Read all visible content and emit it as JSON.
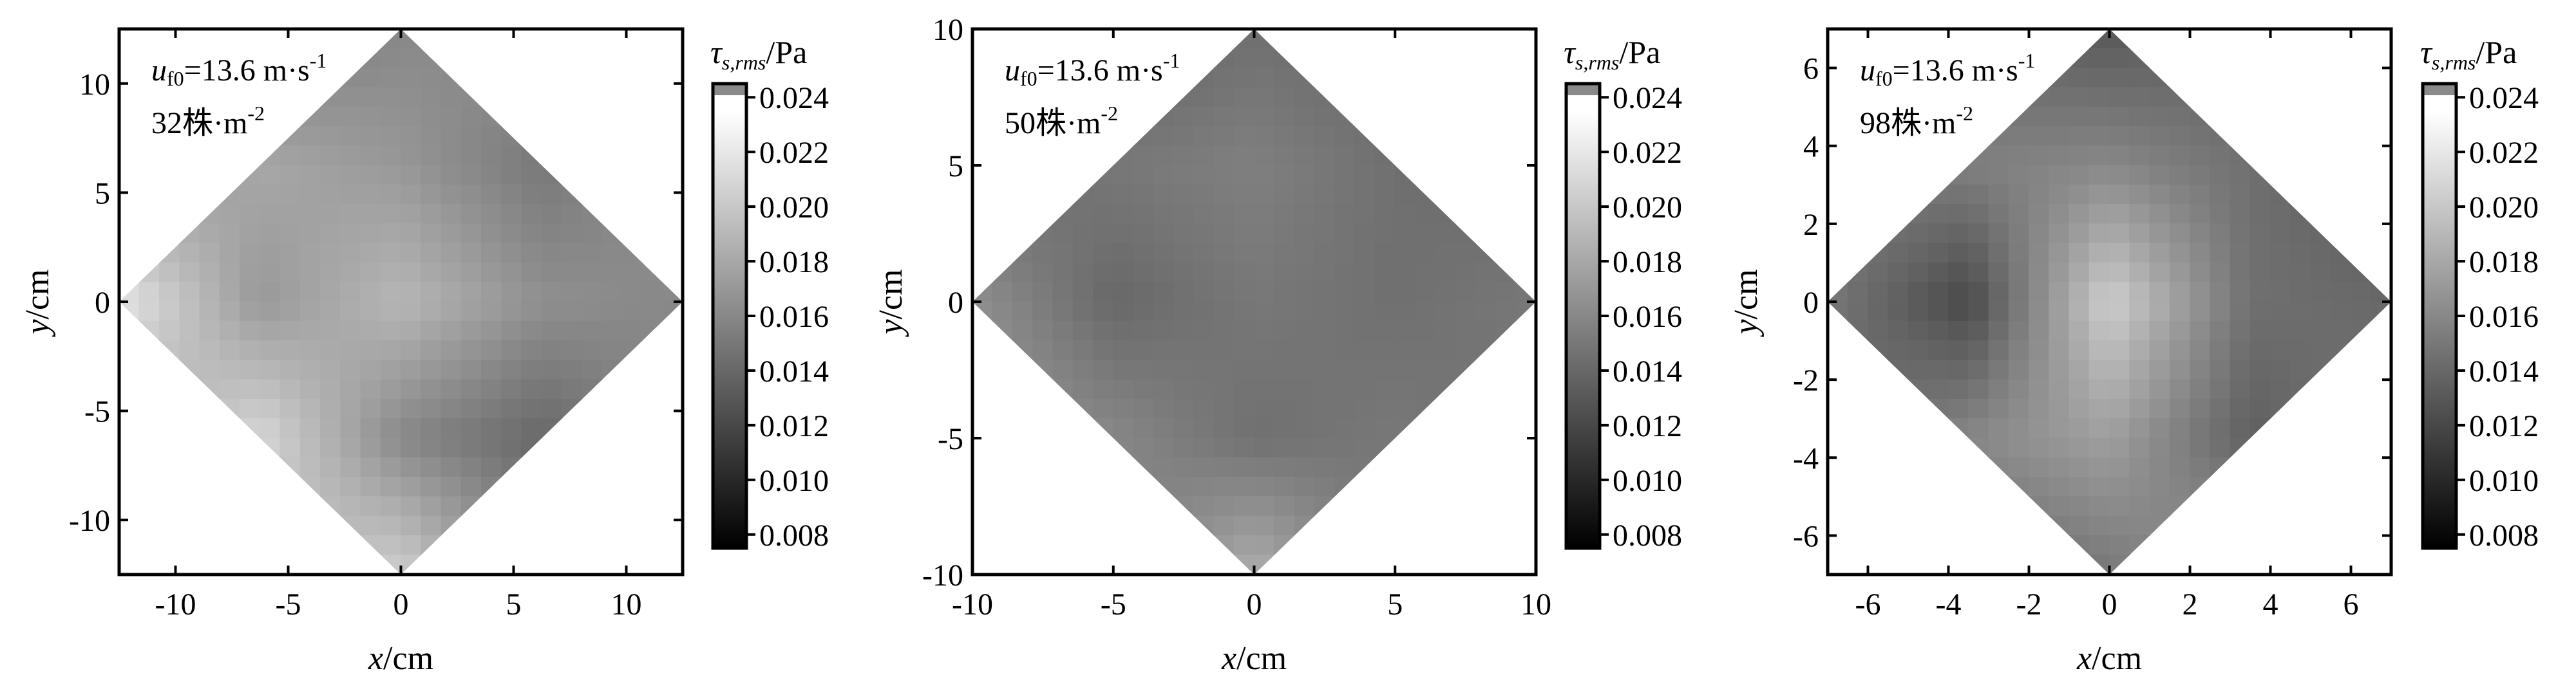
{
  "chart_data": [
    {
      "type": "heatmap",
      "panel": "left",
      "annotation": {
        "var": "u",
        "sub": "f0",
        "speed": "=13.6 m·s",
        "speed_exp": "-1",
        "density": "32株·m",
        "density_exp": "-2"
      },
      "xlabel": {
        "var": "x",
        "unit": "/cm"
      },
      "ylabel": {
        "var": "y",
        "unit": "/cm"
      },
      "xlim": [
        -12.5,
        12.5
      ],
      "ylim": [
        -12.5,
        12.5
      ],
      "xticks": [
        -10,
        -5,
        0,
        5,
        10
      ],
      "yticks": [
        -10,
        -5,
        0,
        5,
        10
      ],
      "xtick_labels": [
        "-10",
        "-5",
        "0",
        "5",
        "10"
      ],
      "ytick_labels": [
        "-10",
        "-5",
        "0",
        "5",
        "10"
      ],
      "domain_shape": "diamond",
      "diamond_half_width": 12.5,
      "grid": [
        [
          0.0155,
          0.015,
          0.016,
          0.0165,
          0.016
        ],
        [
          0.0165,
          0.018,
          0.017,
          0.015,
          0.0165
        ],
        [
          0.022,
          0.017,
          0.019,
          0.0165,
          0.016
        ],
        [
          0.0175,
          0.021,
          0.016,
          0.014,
          0.016
        ],
        [
          0.016,
          0.019,
          0.0205,
          0.0155,
          0.015
        ]
      ],
      "colorbar": {
        "title": "τ",
        "title_sub": "s,rms",
        "title_unit": "/Pa",
        "ticks": [
          0.008,
          0.01,
          0.012,
          0.014,
          0.016,
          0.018,
          0.02,
          0.022,
          0.024
        ],
        "tick_labels": [
          "0.008",
          "0.010",
          "0.012",
          "0.014",
          "0.016",
          "0.018",
          "0.020",
          "0.022",
          "0.024"
        ],
        "range": [
          0.0075,
          0.0245
        ]
      }
    },
    {
      "type": "heatmap",
      "panel": "middle",
      "annotation": {
        "var": "u",
        "sub": "f0",
        "speed": "=13.6 m·s",
        "speed_exp": "-1",
        "density": "50株·m",
        "density_exp": "-2"
      },
      "xlabel": {
        "var": "x",
        "unit": "/cm"
      },
      "ylabel": {
        "var": "y",
        "unit": "/cm"
      },
      "xlim": [
        -10,
        10
      ],
      "ylim": [
        -10,
        10
      ],
      "xticks": [
        -10,
        -5,
        0,
        5,
        10
      ],
      "yticks": [
        -10,
        -5,
        0,
        5,
        10
      ],
      "xtick_labels": [
        "-10",
        "-5",
        "0",
        "5",
        "10"
      ],
      "ytick_labels": [
        "-10",
        "-5",
        "0",
        "5",
        "10"
      ],
      "domain_shape": "diamond",
      "diamond_half_width": 10,
      "grid": [
        [
          0.012,
          0.0135,
          0.0145,
          0.014,
          0.013
        ],
        [
          0.014,
          0.015,
          0.0155,
          0.0145,
          0.014
        ],
        [
          0.0165,
          0.014,
          0.015,
          0.0145,
          0.015
        ],
        [
          0.017,
          0.016,
          0.0145,
          0.015,
          0.0145
        ],
        [
          0.0155,
          0.015,
          0.0185,
          0.0145,
          0.014
        ]
      ],
      "colorbar": {
        "title": "τ",
        "title_sub": "s,rms",
        "title_unit": "/Pa",
        "ticks": [
          0.008,
          0.01,
          0.012,
          0.014,
          0.016,
          0.018,
          0.02,
          0.022,
          0.024
        ],
        "tick_labels": [
          "0.008",
          "0.010",
          "0.012",
          "0.014",
          "0.016",
          "0.018",
          "0.020",
          "0.022",
          "0.024"
        ],
        "range": [
          0.0075,
          0.0245
        ]
      }
    },
    {
      "type": "heatmap",
      "panel": "right",
      "annotation": {
        "var": "u",
        "sub": "f0",
        "speed": "=13.6 m·s",
        "speed_exp": "-1",
        "density": "98株·m",
        "density_exp": "-2"
      },
      "xlabel": {
        "var": "x",
        "unit": "/cm"
      },
      "ylabel": {
        "var": "y",
        "unit": "/cm"
      },
      "xlim": [
        -7,
        7
      ],
      "ylim": [
        -7,
        7
      ],
      "xticks": [
        -6,
        -4,
        -2,
        0,
        2,
        4,
        6
      ],
      "yticks": [
        -6,
        -4,
        -2,
        0,
        2,
        4,
        6
      ],
      "xtick_labels": [
        "-6",
        "-4",
        "-2",
        "0",
        "2",
        "4",
        "6"
      ],
      "ytick_labels": [
        "-6",
        "-4",
        "-2",
        "0",
        "2",
        "4",
        "6"
      ],
      "domain_shape": "diamond",
      "diamond_half_width": 7,
      "grid": [
        [
          0.0135,
          0.014,
          0.013,
          0.014,
          0.014
        ],
        [
          0.015,
          0.0155,
          0.016,
          0.0145,
          0.013
        ],
        [
          0.015,
          0.012,
          0.0205,
          0.0145,
          0.014
        ],
        [
          0.0135,
          0.016,
          0.0175,
          0.0135,
          0.015
        ],
        [
          0.015,
          0.014,
          0.015,
          0.0175,
          0.014
        ]
      ],
      "colorbar": {
        "title": "τ",
        "title_sub": "s,rms",
        "title_unit": "/Pa",
        "ticks": [
          0.008,
          0.01,
          0.012,
          0.014,
          0.016,
          0.018,
          0.02,
          0.022,
          0.024
        ],
        "tick_labels": [
          "0.008",
          "0.010",
          "0.012",
          "0.014",
          "0.016",
          "0.018",
          "0.020",
          "0.022",
          "0.024"
        ],
        "range": [
          0.0075,
          0.0245
        ]
      }
    }
  ]
}
